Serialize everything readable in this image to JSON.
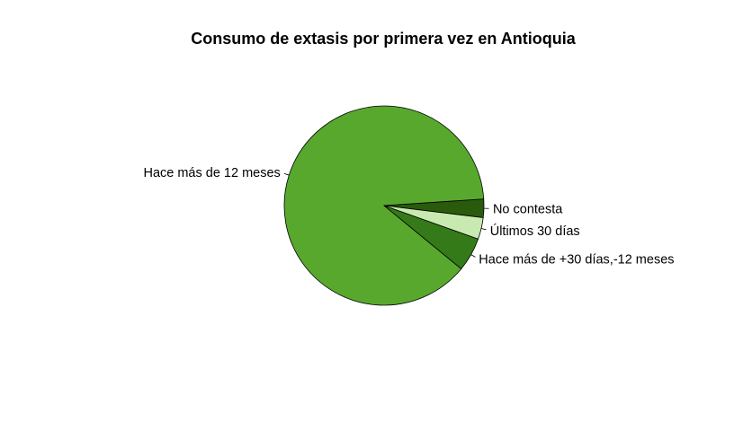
{
  "chart_data": {
    "type": "pie",
    "title": "Consumo de extasis por primera vez en Antioquia",
    "slices": [
      {
        "label": "No contesta",
        "value": 3.0,
        "color": "#2a5a0c"
      },
      {
        "label": "Hace más de 12 meses",
        "value": 88.0,
        "color": "#58a82e"
      },
      {
        "label": "Hace más de +30 días,-12 meses",
        "value": 5.5,
        "color": "#347a18"
      },
      {
        "label": "Últimos 30 días",
        "value": 3.5,
        "color": "#c8eab0"
      }
    ],
    "stroke": "#000000"
  }
}
